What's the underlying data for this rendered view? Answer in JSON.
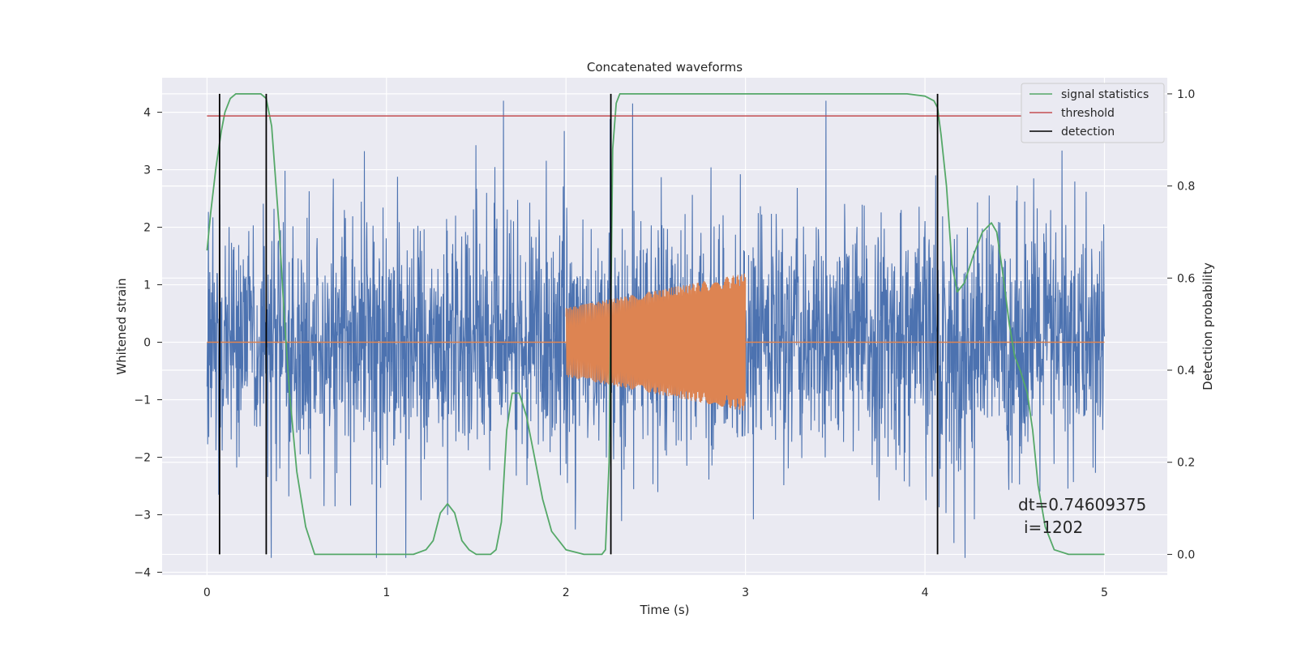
{
  "chart_data": {
    "type": "line",
    "title": "Concatenated waveforms",
    "xlabel": "Time (s)",
    "ylabel": "Whitened strain",
    "y2label": "Detection probability",
    "xlim": [
      -0.25,
      5.35
    ],
    "ylim": [
      -4.05,
      4.6
    ],
    "y2lim": [
      -0.045,
      1.035
    ],
    "xticks": [
      0,
      1,
      2,
      3,
      4,
      5
    ],
    "yticks": [
      -4,
      -3,
      -2,
      -1,
      0,
      1,
      2,
      3,
      4
    ],
    "y2ticks": [
      "0.0",
      "0.2",
      "0.4",
      "0.6",
      "0.8",
      "1.0"
    ],
    "grid": true,
    "legend": {
      "placement": "top-right",
      "entries": [
        "signal statistics",
        "threshold",
        "detection"
      ]
    },
    "colors": {
      "noise": "#4c72b0",
      "waveform": "#dd8452",
      "signal_statistics": "#55a868",
      "threshold": "#c44e52",
      "detection": "#000000",
      "axes_bg": "#eaeaf2",
      "grid": "#ffffff"
    },
    "series": [
      {
        "name": "",
        "axis": "left",
        "description_kind": "noise",
        "x_range": [
          0,
          5
        ],
        "amplitude_envelope": 2.2
      },
      {
        "name": "",
        "axis": "left",
        "description_kind": "chirp",
        "x_range": [
          2.0,
          3.0
        ],
        "amplitude_start": 0.6,
        "amplitude_end": 1.2,
        "zero_line_range": [
          0,
          5
        ]
      },
      {
        "name": "signal statistics",
        "axis": "right",
        "x": [
          0.0,
          0.02,
          0.05,
          0.08,
          0.1,
          0.13,
          0.16,
          0.2,
          0.25,
          0.3,
          0.33,
          0.36,
          0.4,
          0.43,
          0.46,
          0.5,
          0.55,
          0.6,
          0.7,
          1.0,
          1.15,
          1.22,
          1.26,
          1.3,
          1.34,
          1.38,
          1.42,
          1.46,
          1.5,
          1.58,
          1.61,
          1.64,
          1.67,
          1.7,
          1.74,
          1.78,
          1.82,
          1.87,
          1.92,
          2.0,
          2.1,
          2.2,
          2.22,
          2.24,
          2.26,
          2.28,
          2.3,
          2.33,
          2.4,
          2.6,
          3.0,
          3.5,
          3.9,
          4.0,
          4.05,
          4.07,
          4.09,
          4.12,
          4.15,
          4.18,
          4.22,
          4.27,
          4.32,
          4.37,
          4.4,
          4.43,
          4.47,
          4.5,
          4.53,
          4.57,
          4.6,
          4.63,
          4.67,
          4.72,
          4.8,
          5.0
        ],
        "values": [
          0.66,
          0.74,
          0.84,
          0.92,
          0.96,
          0.99,
          1.0,
          1.0,
          1.0,
          1.0,
          0.99,
          0.93,
          0.72,
          0.52,
          0.35,
          0.18,
          0.06,
          0.0,
          0.0,
          0.0,
          0.0,
          0.01,
          0.03,
          0.09,
          0.11,
          0.09,
          0.03,
          0.01,
          0.0,
          0.0,
          0.01,
          0.07,
          0.27,
          0.35,
          0.35,
          0.3,
          0.22,
          0.12,
          0.05,
          0.01,
          0.0,
          0.0,
          0.01,
          0.2,
          0.88,
          0.98,
          1.0,
          1.0,
          1.0,
          1.0,
          1.0,
          1.0,
          1.0,
          0.995,
          0.985,
          0.97,
          0.91,
          0.8,
          0.63,
          0.57,
          0.59,
          0.65,
          0.7,
          0.72,
          0.7,
          0.62,
          0.5,
          0.43,
          0.4,
          0.35,
          0.27,
          0.15,
          0.06,
          0.01,
          0.0,
          0.0
        ]
      },
      {
        "name": "threshold",
        "axis": "right",
        "x": [
          0,
          5
        ],
        "values": [
          0.952,
          0.952
        ]
      },
      {
        "name": "detection",
        "axis": "right",
        "x": [
          0.07,
          0.33,
          2.25,
          4.07
        ],
        "y_range": [
          0.0,
          1.0
        ]
      }
    ],
    "annotations": [
      {
        "text": "dt=0.74609375",
        "x": 5.0,
        "y": 0.11
      },
      {
        "text": "i=1202",
        "x": 5.0,
        "y": 0.06
      }
    ]
  }
}
